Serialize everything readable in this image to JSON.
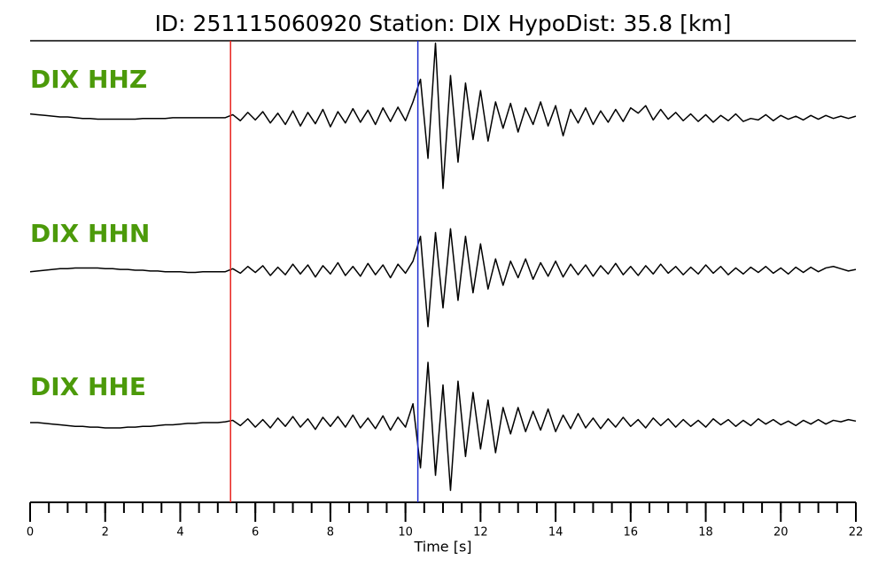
{
  "chart_data": {
    "type": "line",
    "title": "ID: 251115060920   Station: DIX   HypoDist:    35.8 [km]",
    "xlabel": "Time [s]",
    "xlim": [
      0,
      22
    ],
    "xticks": [
      0,
      2,
      4,
      6,
      8,
      10,
      12,
      14,
      16,
      18,
      20,
      22
    ],
    "xminorticks": [
      0,
      0.5,
      1,
      1.5,
      2,
      2.5,
      3,
      3.5,
      4,
      4.5,
      5,
      5.5,
      6,
      6.5,
      7,
      7.5,
      8,
      8.5,
      9,
      9.5,
      10,
      10.5,
      11,
      11.5,
      12,
      12.5,
      13,
      13.5,
      14,
      14.5,
      15,
      15.5,
      16,
      16.5,
      17,
      17.5,
      18,
      18.5,
      19,
      19.5,
      20,
      20.5,
      21,
      21.5,
      22
    ],
    "ylim": [
      -1,
      1
    ],
    "label_color": "#4c9a0a",
    "vlines": [
      {
        "x": 5.34,
        "color": "#e8231e"
      },
      {
        "x": 10.33,
        "color": "#1f2fd0"
      }
    ],
    "x": [
      0,
      0.2,
      0.4,
      0.6,
      0.8,
      1,
      1.2,
      1.4,
      1.6,
      1.8,
      2,
      2.2,
      2.4,
      2.6,
      2.8,
      3,
      3.2,
      3.4,
      3.6,
      3.8,
      4,
      4.2,
      4.4,
      4.6,
      4.8,
      5,
      5.2,
      5.4,
      5.6,
      5.8,
      6,
      6.2,
      6.4,
      6.6,
      6.8,
      7,
      7.2,
      7.4,
      7.6,
      7.8,
      8,
      8.2,
      8.4,
      8.6,
      8.8,
      9,
      9.2,
      9.4,
      9.6,
      9.8,
      10,
      10.2,
      10.4,
      10.6,
      10.8,
      11,
      11.2,
      11.4,
      11.6,
      11.8,
      12,
      12.2,
      12.4,
      12.6,
      12.8,
      13,
      13.2,
      13.4,
      13.6,
      13.8,
      14,
      14.2,
      14.4,
      14.6,
      14.8,
      15,
      15.2,
      15.4,
      15.6,
      15.8,
      16,
      16.2,
      16.4,
      16.6,
      16.8,
      17,
      17.2,
      17.4,
      17.6,
      17.8,
      18,
      18.2,
      18.4,
      18.6,
      18.8,
      19,
      19.2,
      19.4,
      19.6,
      19.8,
      20,
      20.2,
      20.4,
      20.6,
      20.8,
      21,
      21.2,
      21.4,
      21.6,
      21.8,
      22
    ],
    "series": [
      {
        "name": "DIX HHZ",
        "color": "#000000",
        "values": [
          0.04,
          0.03,
          0.02,
          0.01,
          0,
          0,
          -0.01,
          -0.02,
          -0.02,
          -0.03,
          -0.03,
          -0.03,
          -0.03,
          -0.03,
          -0.03,
          -0.02,
          -0.02,
          -0.02,
          -0.02,
          -0.01,
          -0.01,
          -0.01,
          -0.01,
          -0.01,
          -0.01,
          -0.01,
          -0.01,
          0.03,
          -0.05,
          0.06,
          -0.04,
          0.07,
          -0.08,
          0.05,
          -0.1,
          0.08,
          -0.12,
          0.06,
          -0.09,
          0.1,
          -0.13,
          0.07,
          -0.08,
          0.11,
          -0.07,
          0.09,
          -0.1,
          0.12,
          -0.06,
          0.13,
          -0.05,
          0.2,
          0.5,
          -0.55,
          0.98,
          -0.95,
          0.55,
          -0.6,
          0.45,
          -0.3,
          0.35,
          -0.32,
          0.2,
          -0.15,
          0.18,
          -0.2,
          0.12,
          -0.1,
          0.2,
          -0.12,
          0.15,
          -0.25,
          0.1,
          -0.08,
          0.12,
          -0.1,
          0.08,
          -0.07,
          0.1,
          -0.06,
          0.12,
          0.05,
          0.15,
          -0.04,
          0.1,
          -0.03,
          0.06,
          -0.05,
          0.04,
          -0.06,
          0.03,
          -0.07,
          0.02,
          -0.05,
          0.04,
          -0.06,
          -0.02,
          -0.04,
          0.03,
          -0.05,
          0.02,
          -0.03,
          0.01,
          -0.04,
          0.02,
          -0.03,
          0.02,
          -0.02,
          0.01,
          -0.02,
          0.01
        ]
      },
      {
        "name": "DIX HHN",
        "color": "#000000",
        "values": [
          -0.02,
          -0.01,
          0,
          0.01,
          0.02,
          0.02,
          0.03,
          0.03,
          0.03,
          0.03,
          0.02,
          0.02,
          0.01,
          0.01,
          0,
          0,
          -0.01,
          -0.01,
          -0.02,
          -0.02,
          -0.02,
          -0.03,
          -0.03,
          -0.02,
          -0.02,
          -0.02,
          -0.02,
          0.02,
          -0.04,
          0.05,
          -0.03,
          0.06,
          -0.07,
          0.04,
          -0.06,
          0.08,
          -0.05,
          0.07,
          -0.09,
          0.06,
          -0.05,
          0.1,
          -0.07,
          0.05,
          -0.08,
          0.09,
          -0.06,
          0.07,
          -0.1,
          0.08,
          -0.04,
          0.12,
          0.45,
          -0.75,
          0.5,
          -0.5,
          0.55,
          -0.4,
          0.45,
          -0.3,
          0.35,
          -0.25,
          0.15,
          -0.2,
          0.12,
          -0.1,
          0.15,
          -0.12,
          0.1,
          -0.08,
          0.12,
          -0.09,
          0.08,
          -0.06,
          0.07,
          -0.08,
          0.06,
          -0.05,
          0.09,
          -0.06,
          0.05,
          -0.07,
          0.06,
          -0.05,
          0.08,
          -0.04,
          0.05,
          -0.06,
          0.04,
          -0.05,
          0.07,
          -0.04,
          0.05,
          -0.06,
          0.03,
          -0.05,
          0.04,
          -0.03,
          0.05,
          -0.04,
          0.03,
          -0.05,
          0.04,
          -0.03,
          0.04,
          -0.02,
          0.03,
          0.05,
          0.02,
          -0.01,
          0.01
        ]
      },
      {
        "name": "DIX HHE",
        "color": "#000000",
        "values": [
          0,
          0,
          -0.01,
          -0.02,
          -0.03,
          -0.04,
          -0.05,
          -0.05,
          -0.06,
          -0.06,
          -0.07,
          -0.07,
          -0.07,
          -0.06,
          -0.06,
          -0.05,
          -0.05,
          -0.04,
          -0.03,
          -0.03,
          -0.02,
          -0.01,
          -0.01,
          0,
          0,
          0,
          0.01,
          0.03,
          -0.04,
          0.05,
          -0.06,
          0.04,
          -0.07,
          0.06,
          -0.05,
          0.08,
          -0.06,
          0.05,
          -0.09,
          0.07,
          -0.05,
          0.08,
          -0.06,
          0.1,
          -0.07,
          0.06,
          -0.08,
          0.09,
          -0.1,
          0.07,
          -0.06,
          0.25,
          -0.6,
          0.8,
          -0.7,
          0.5,
          -0.9,
          0.55,
          -0.45,
          0.4,
          -0.35,
          0.3,
          -0.4,
          0.2,
          -0.15,
          0.2,
          -0.12,
          0.15,
          -0.1,
          0.18,
          -0.12,
          0.1,
          -0.08,
          0.12,
          -0.07,
          0.06,
          -0.08,
          0.05,
          -0.06,
          0.07,
          -0.05,
          0.04,
          -0.07,
          0.06,
          -0.04,
          0.05,
          -0.06,
          0.04,
          -0.05,
          0.03,
          -0.06,
          0.05,
          -0.03,
          0.04,
          -0.05,
          0.03,
          -0.04,
          0.05,
          -0.02,
          0.04,
          -0.03,
          0.02,
          -0.04,
          0.03,
          -0.02,
          0.04,
          -0.02,
          0.03,
          0.01,
          0.04,
          0.02
        ]
      }
    ]
  }
}
